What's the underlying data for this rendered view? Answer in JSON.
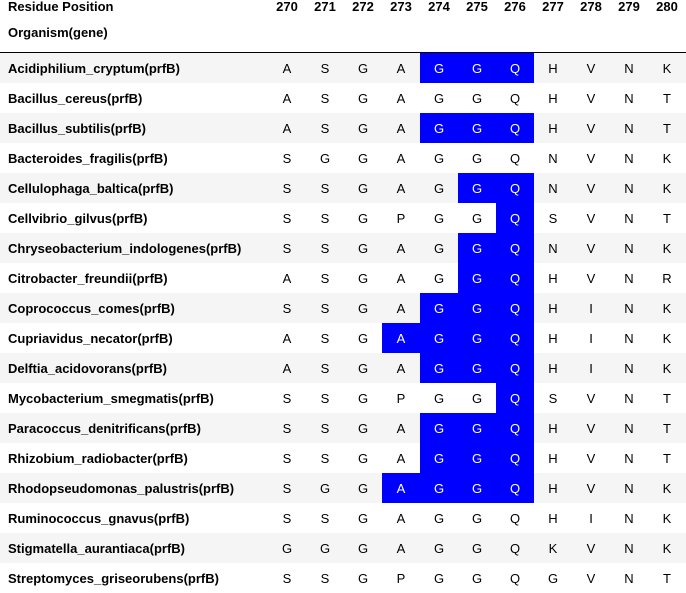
{
  "header": {
    "residue_label": "Residue Position",
    "organism_label": "Organism(gene)",
    "positions": [
      "270",
      "271",
      "272",
      "273",
      "274",
      "275",
      "276",
      "277",
      "278",
      "279",
      "280"
    ]
  },
  "colors": {
    "highlight": "#0000ff",
    "stripe": "#f5f5f5"
  },
  "rows": [
    {
      "name": "Acidiphilium_cryptum(prfB)",
      "residues": [
        "A",
        "S",
        "G",
        "A",
        "G",
        "G",
        "Q",
        "H",
        "V",
        "N",
        "K"
      ],
      "highlight": [
        4,
        5,
        6
      ]
    },
    {
      "name": "Bacillus_cereus(prfB)",
      "residues": [
        "A",
        "S",
        "G",
        "A",
        "G",
        "G",
        "Q",
        "H",
        "V",
        "N",
        "T"
      ],
      "highlight": []
    },
    {
      "name": "Bacillus_subtilis(prfB)",
      "residues": [
        "A",
        "S",
        "G",
        "A",
        "G",
        "G",
        "Q",
        "H",
        "V",
        "N",
        "T"
      ],
      "highlight": [
        4,
        5,
        6
      ]
    },
    {
      "name": "Bacteroides_fragilis(prfB)",
      "residues": [
        "S",
        "G",
        "G",
        "A",
        "G",
        "G",
        "Q",
        "N",
        "V",
        "N",
        "K"
      ],
      "highlight": []
    },
    {
      "name": "Cellulophaga_baltica(prfB)",
      "residues": [
        "S",
        "S",
        "G",
        "A",
        "G",
        "G",
        "Q",
        "N",
        "V",
        "N",
        "K"
      ],
      "highlight": [
        5,
        6
      ]
    },
    {
      "name": "Cellvibrio_gilvus(prfB)",
      "residues": [
        "S",
        "S",
        "G",
        "P",
        "G",
        "G",
        "Q",
        "S",
        "V",
        "N",
        "T"
      ],
      "highlight": [
        6
      ]
    },
    {
      "name": "Chryseobacterium_indologenes(prfB)",
      "residues": [
        "S",
        "S",
        "G",
        "A",
        "G",
        "G",
        "Q",
        "N",
        "V",
        "N",
        "K"
      ],
      "highlight": [
        5,
        6
      ]
    },
    {
      "name": "Citrobacter_freundii(prfB)",
      "residues": [
        "A",
        "S",
        "G",
        "A",
        "G",
        "G",
        "Q",
        "H",
        "V",
        "N",
        "R"
      ],
      "highlight": [
        5,
        6
      ]
    },
    {
      "name": "Coprococcus_comes(prfB)",
      "residues": [
        "S",
        "S",
        "G",
        "A",
        "G",
        "G",
        "Q",
        "H",
        "I",
        "N",
        "K"
      ],
      "highlight": [
        4,
        5,
        6
      ]
    },
    {
      "name": "Cupriavidus_necator(prfB)",
      "residues": [
        "A",
        "S",
        "G",
        "A",
        "G",
        "G",
        "Q",
        "H",
        "I",
        "N",
        "K"
      ],
      "highlight": [
        3,
        4,
        5,
        6
      ]
    },
    {
      "name": "Delftia_acidovorans(prfB)",
      "residues": [
        "A",
        "S",
        "G",
        "A",
        "G",
        "G",
        "Q",
        "H",
        "I",
        "N",
        "K"
      ],
      "highlight": [
        4,
        5,
        6
      ]
    },
    {
      "name": "Mycobacterium_smegmatis(prfB)",
      "residues": [
        "S",
        "S",
        "G",
        "P",
        "G",
        "G",
        "Q",
        "S",
        "V",
        "N",
        "T"
      ],
      "highlight": [
        6
      ]
    },
    {
      "name": "Paracoccus_denitrificans(prfB)",
      "residues": [
        "S",
        "S",
        "G",
        "A",
        "G",
        "G",
        "Q",
        "H",
        "V",
        "N",
        "T"
      ],
      "highlight": [
        4,
        5,
        6
      ]
    },
    {
      "name": "Rhizobium_radiobacter(prfB)",
      "residues": [
        "S",
        "S",
        "G",
        "A",
        "G",
        "G",
        "Q",
        "H",
        "V",
        "N",
        "T"
      ],
      "highlight": [
        4,
        5,
        6
      ]
    },
    {
      "name": "Rhodopseudomonas_palustris(prfB)",
      "residues": [
        "S",
        "G",
        "G",
        "A",
        "G",
        "G",
        "Q",
        "H",
        "V",
        "N",
        "K"
      ],
      "highlight": [
        3,
        4,
        5,
        6
      ]
    },
    {
      "name": "Ruminococcus_gnavus(prfB)",
      "residues": [
        "S",
        "S",
        "G",
        "A",
        "G",
        "G",
        "Q",
        "H",
        "I",
        "N",
        "K"
      ],
      "highlight": []
    },
    {
      "name": "Stigmatella_aurantiaca(prfB)",
      "residues": [
        "G",
        "G",
        "G",
        "A",
        "G",
        "G",
        "Q",
        "K",
        "V",
        "N",
        "K"
      ],
      "highlight": []
    },
    {
      "name": "Streptomyces_griseorubens(prfB)",
      "residues": [
        "S",
        "S",
        "G",
        "P",
        "G",
        "G",
        "Q",
        "G",
        "V",
        "N",
        "T"
      ],
      "highlight": []
    }
  ]
}
